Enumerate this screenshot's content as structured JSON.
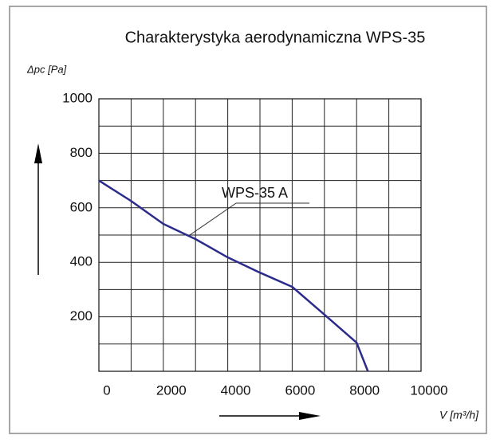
{
  "chart_data": {
    "type": "line",
    "title": "Charakterystyka aerodynamiczna  WPS-35",
    "y_label": "Δpc [Pa]",
    "x_label": "V [m³/h]",
    "annotation": "WPS-35 A",
    "x": [
      0,
      1000,
      2000,
      3000,
      4000,
      5000,
      6000,
      7000,
      8000,
      8350
    ],
    "series": [
      {
        "name": "WPS-35 A",
        "color": "#2b2b8c",
        "values": [
          700,
          625,
          541,
          485,
          418,
          362,
          310,
          208,
          105,
          0
        ]
      }
    ],
    "xlim": [
      0,
      10000
    ],
    "xticks": [
      0,
      2000,
      4000,
      6000,
      8000,
      10000
    ],
    "ylim": [
      0,
      1000
    ],
    "yticks": [
      200,
      400,
      600,
      800,
      1000
    ],
    "grid": true
  }
}
